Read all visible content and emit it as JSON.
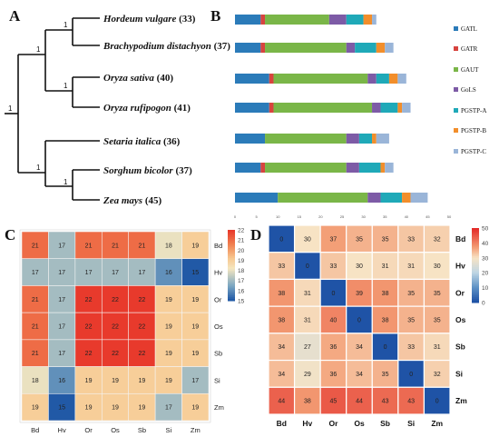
{
  "panel_labels": {
    "a": "A",
    "b": "B",
    "c": "C",
    "d": "D"
  },
  "species": [
    {
      "name": "Hordeum vulgare",
      "count": "(33)"
    },
    {
      "name": "Brachypodium distachyon",
      "count": "(37)"
    },
    {
      "name": "Oryza sativa",
      "count": "(40)"
    },
    {
      "name": "Oryza rufipogon",
      "count": "(41)"
    },
    {
      "name": "Setaria italica",
      "count": "(36)"
    },
    {
      "name": "Sorghum bicolor",
      "count": "(37)"
    },
    {
      "name": "Zea mays",
      "count": "(45)"
    }
  ],
  "bootstrap": [
    "1",
    "1",
    "1",
    "1",
    "1",
    "1"
  ],
  "colors": {
    "GATL": "#2b7bb9",
    "GATR": "#d7443f",
    "GAUT": "#7ab648",
    "GoLS": "#7d5ba6",
    "PGSTP-A": "#1fa9b8",
    "PGSTP-B": "#f28e2b",
    "PGSTP-C": "#9ab5d8"
  },
  "chart_data": [
    {
      "type": "bar",
      "orientation": "horizontal-stacked",
      "categories": [
        "Hordeum vulgare",
        "Brachypodium distachyon",
        "Oryza sativa",
        "Oryza rufipogon",
        "Setaria italica",
        "Sorghum bicolor",
        "Zea mays"
      ],
      "series": [
        {
          "name": "GATL",
          "values": [
            6,
            6,
            8,
            8,
            7,
            6,
            10
          ]
        },
        {
          "name": "GATR",
          "values": [
            1,
            1,
            1,
            1,
            0,
            1,
            0
          ]
        },
        {
          "name": "GAUT",
          "values": [
            15,
            19,
            22,
            23,
            19,
            19,
            21
          ]
        },
        {
          "name": "GoLS",
          "values": [
            4,
            2,
            2,
            2,
            3,
            3,
            3
          ]
        },
        {
          "name": "PGSTP-A",
          "values": [
            4,
            5,
            3,
            4,
            3,
            5,
            5
          ]
        },
        {
          "name": "PGSTP-B",
          "values": [
            2,
            2,
            2,
            1,
            1,
            1,
            2
          ]
        },
        {
          "name": "PGSTP-C",
          "values": [
            1,
            2,
            2,
            2,
            3,
            2,
            4
          ]
        }
      ],
      "xticks": [
        "0",
        "5",
        "10",
        "15",
        "20",
        "25",
        "30",
        "35",
        "40",
        "45",
        "50"
      ],
      "xlim": [
        0,
        50
      ]
    },
    {
      "type": "heatmap",
      "rows": [
        "Bd",
        "Hv",
        "Or",
        "Os",
        "Sb",
        "Si",
        "Zm"
      ],
      "cols": [
        "Bd",
        "Hv",
        "Or",
        "Os",
        "Sb",
        "Si",
        "Zm"
      ],
      "values": [
        [
          21,
          17,
          21,
          21,
          21,
          18,
          19
        ],
        [
          17,
          17,
          17,
          17,
          17,
          16,
          15
        ],
        [
          21,
          17,
          22,
          22,
          22,
          19,
          19
        ],
        [
          21,
          17,
          22,
          22,
          22,
          19,
          19
        ],
        [
          21,
          17,
          22,
          22,
          22,
          19,
          19
        ],
        [
          18,
          16,
          19,
          19,
          19,
          19,
          17
        ],
        [
          19,
          15,
          19,
          19,
          19,
          17,
          19
        ]
      ],
      "scale_ticks": [
        "22",
        "21",
        "20",
        "19",
        "18",
        "17",
        "16",
        "15"
      ],
      "zlim": [
        15,
        22
      ]
    },
    {
      "type": "heatmap",
      "rows": [
        "Bd",
        "Hv",
        "Or",
        "Os",
        "Sb",
        "Si",
        "Zm"
      ],
      "cols": [
        "Bd",
        "Hv",
        "Or",
        "Os",
        "Sb",
        "Si",
        "Zm"
      ],
      "values": [
        [
          0,
          30,
          37,
          35,
          35,
          33,
          32
        ],
        [
          33,
          0,
          33,
          30,
          31,
          31,
          30
        ],
        [
          38,
          31,
          0,
          39,
          38,
          35,
          35
        ],
        [
          38,
          31,
          40,
          0,
          38,
          35,
          35
        ],
        [
          34,
          27,
          36,
          34,
          0,
          33,
          31
        ],
        [
          34,
          29,
          36,
          34,
          35,
          0,
          32
        ],
        [
          44,
          38,
          45,
          44,
          43,
          43,
          0
        ]
      ],
      "scale_ticks": [
        "50",
        "40",
        "30",
        "20",
        "10",
        "0"
      ],
      "zlim": [
        0,
        50
      ]
    }
  ]
}
